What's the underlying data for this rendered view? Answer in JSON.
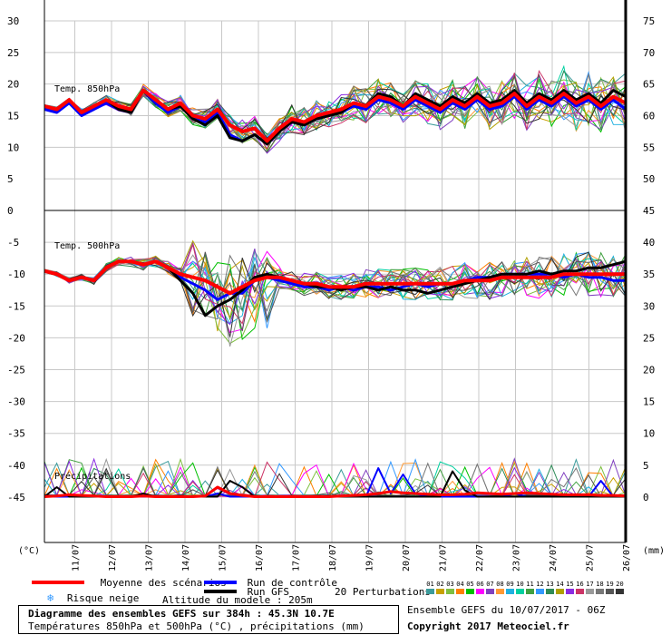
{
  "chart_data": {
    "type": "line",
    "panels": {
      "t850": {
        "label": "Temp. 850hPa",
        "left_axis": [
          30,
          25,
          20,
          15,
          10,
          5,
          0
        ],
        "right_axis": [
          75,
          70,
          65,
          60,
          55,
          50,
          45
        ],
        "ylim": [
          0,
          30
        ]
      },
      "t500": {
        "label": "Temp. 500hPa",
        "left_axis": [
          -5,
          -10,
          -15,
          -20,
          -25,
          -30,
          -35,
          -40,
          -45
        ],
        "right_axis": [
          40,
          35,
          30,
          25,
          20,
          15,
          10,
          5,
          0
        ],
        "ylim": [
          -50,
          0
        ]
      },
      "precip": {
        "label": "Précipitations"
      }
    },
    "unit_left": "(°C)",
    "unit_right": "(mm)",
    "dates": [
      "11/07",
      "12/07",
      "13/07",
      "14/07",
      "15/07",
      "16/07",
      "17/07",
      "18/07",
      "19/07",
      "20/07",
      "21/07",
      "22/07",
      "23/07",
      "24/07",
      "25/07",
      "26/07"
    ],
    "series": {
      "t850_mean": [
        16.5,
        16.0,
        17.5,
        15.5,
        16.5,
        17.5,
        16.5,
        16.0,
        19.0,
        17.5,
        16.0,
        17.0,
        15.0,
        14.5,
        16.0,
        13.5,
        12.5,
        13.0,
        11.0,
        13.0,
        14.5,
        14.0,
        15.0,
        15.5,
        16.0,
        17.0,
        16.5,
        18.0,
        17.5,
        16.5,
        18.0,
        17.0,
        16.0,
        17.5,
        16.5,
        18.0,
        16.5,
        17.0,
        18.5,
        16.5,
        18.0,
        17.0,
        18.5,
        17.0,
        18.0,
        16.5,
        18.0,
        17.0
      ],
      "t850_control": [
        16.0,
        15.5,
        17.0,
        15.0,
        16.0,
        17.0,
        16.0,
        15.5,
        19.0,
        17.0,
        15.5,
        16.5,
        14.5,
        14.0,
        15.5,
        12.0,
        11.0,
        12.0,
        10.5,
        12.5,
        14.0,
        13.5,
        14.5,
        15.0,
        15.5,
        16.5,
        16.0,
        17.5,
        17.0,
        16.0,
        17.5,
        16.5,
        15.5,
        17.0,
        16.0,
        17.5,
        16.0,
        16.5,
        18.0,
        16.0,
        17.5,
        16.5,
        18.0,
        16.5,
        17.5,
        16.0,
        17.5,
        16.0
      ],
      "t850_gfs": [
        16.5,
        16.0,
        17.5,
        15.5,
        16.5,
        17.5,
        16.0,
        15.5,
        19.0,
        17.5,
        16.0,
        16.5,
        14.5,
        13.5,
        15.0,
        11.5,
        11.0,
        12.0,
        10.5,
        12.5,
        14.0,
        13.5,
        14.5,
        15.0,
        15.5,
        17.0,
        16.5,
        18.5,
        18.0,
        16.5,
        18.5,
        17.5,
        16.5,
        18.0,
        17.0,
        18.5,
        17.0,
        17.5,
        19.0,
        17.0,
        18.5,
        17.5,
        19.0,
        17.5,
        18.5,
        17.0,
        19.0,
        18.0
      ],
      "t500_mean": [
        -9.5,
        -10.0,
        -11.0,
        -10.5,
        -11.0,
        -9.0,
        -8.0,
        -8.0,
        -8.5,
        -8.0,
        -9.0,
        -10.0,
        -10.5,
        -11.0,
        -12.0,
        -13.0,
        -12.0,
        -11.0,
        -10.5,
        -10.5,
        -11.0,
        -11.5,
        -11.5,
        -12.0,
        -12.0,
        -12.0,
        -11.5,
        -11.5,
        -11.5,
        -11.5,
        -11.5,
        -11.5,
        -11.5,
        -11.5,
        -11.0,
        -11.0,
        -11.0,
        -10.5,
        -10.5,
        -10.5,
        -10.5,
        -10.5,
        -10.0,
        -10.0,
        -10.0,
        -10.0,
        -10.0,
        -10.0
      ],
      "t500_control": [
        -9.5,
        -10.0,
        -11.0,
        -10.5,
        -11.0,
        -9.0,
        -8.0,
        -8.0,
        -8.5,
        -8.0,
        -9.0,
        -10.5,
        -11.5,
        -12.5,
        -14.0,
        -13.0,
        -13.0,
        -11.0,
        -10.5,
        -11.0,
        -11.5,
        -12.0,
        -12.0,
        -12.5,
        -12.0,
        -12.5,
        -12.0,
        -12.0,
        -12.5,
        -12.0,
        -11.5,
        -12.0,
        -11.5,
        -11.5,
        -11.0,
        -10.5,
        -10.5,
        -10.0,
        -10.0,
        -10.0,
        -10.0,
        -10.0,
        -10.5,
        -10.0,
        -10.5,
        -10.5,
        -11.0,
        -11.0
      ],
      "t500_gfs": [
        -9.5,
        -10.0,
        -11.0,
        -10.5,
        -11.0,
        -9.0,
        -8.0,
        -8.0,
        -8.5,
        -8.0,
        -9.0,
        -11.0,
        -13.0,
        -16.5,
        -15.0,
        -14.0,
        -12.5,
        -10.5,
        -10.0,
        -10.5,
        -11.0,
        -11.5,
        -12.0,
        -12.0,
        -12.5,
        -12.0,
        -12.0,
        -12.5,
        -12.0,
        -12.5,
        -12.5,
        -13.0,
        -12.5,
        -12.0,
        -11.5,
        -11.0,
        -10.5,
        -10.0,
        -10.0,
        -10.0,
        -9.5,
        -10.0,
        -9.5,
        -9.5,
        -9.0,
        -9.0,
        -8.5,
        -8.0
      ],
      "precip_mean": [
        0,
        0.1,
        0.3,
        0.2,
        0.1,
        0,
        0,
        0,
        0.1,
        0,
        0,
        0,
        0,
        0.1,
        1.5,
        0.5,
        0.2,
        0,
        0,
        0,
        0,
        0,
        0,
        0,
        0.1,
        0.2,
        0.3,
        0.5,
        0.8,
        0.6,
        0.5,
        0.4,
        0.3,
        0.3,
        0.4,
        0.6,
        0.5,
        0.4,
        0.5,
        0.6,
        0.5,
        0.4,
        0.3,
        0.3,
        0.3,
        0.2,
        0.2,
        0.1
      ],
      "precip_control": [
        0,
        0,
        0,
        0,
        0,
        0,
        0,
        0,
        0,
        0,
        0,
        0,
        0,
        0,
        0.5,
        0,
        0,
        0,
        0,
        0,
        0,
        0,
        0,
        0,
        0,
        0,
        0,
        4.5,
        0.5,
        3.5,
        0.5,
        0,
        0,
        0,
        0,
        0,
        0,
        0,
        0.5,
        0,
        0,
        0,
        0,
        0,
        0,
        2.5,
        0,
        0
      ],
      "precip_gfs": [
        0,
        1.5,
        0,
        0,
        0,
        0,
        0,
        0,
        0.5,
        0,
        0,
        0,
        0,
        0,
        0,
        2.5,
        1.5,
        0,
        0,
        0,
        0,
        0,
        0,
        0,
        0,
        0,
        0,
        0,
        0,
        0,
        0,
        0,
        0,
        4.0,
        1.0,
        0,
        0,
        0,
        0,
        0,
        0,
        0,
        0,
        0,
        0,
        0,
        0,
        0
      ]
    },
    "n_perturbations": 20
  },
  "colors": {
    "mean": "#ff0000",
    "control": "#0000ff",
    "gfs": "#000000",
    "snow": "#3399ff",
    "perturbations": [
      "#3b9b9b",
      "#c8a000",
      "#7ebf40",
      "#ff7f00",
      "#00c000",
      "#ff00ff",
      "#8040c0",
      "#ff9933",
      "#20b0e0",
      "#00d0a0",
      "#40a040",
      "#3399ff",
      "#2e8b57",
      "#b0a000",
      "#8a2be2",
      "#cc3366",
      "#999999",
      "#777777",
      "#555555",
      "#333333"
    ]
  },
  "legend": {
    "mean_label": "Moyenne des scénarios",
    "control_label": "Run de contrôle",
    "gfs_label": "Run GFS",
    "snow_label": "Risque neige",
    "altitude_label": "Altitude du modele : 205m",
    "perturbations_label": "20 Perturbations",
    "perturbation_codes": [
      "01",
      "02",
      "03",
      "04",
      "05",
      "06",
      "07",
      "08",
      "09",
      "10",
      "11",
      "12",
      "13",
      "14",
      "15",
      "16",
      "17",
      "18",
      "19",
      "20"
    ]
  },
  "footer": {
    "title": "Diagramme des ensembles GEFS sur 384h : 45.3N 10.7E",
    "subtitle": "Températures 850hPa et 500hPa (°C) , précipitations (mm)",
    "ensemble_run": "Ensemble GEFS du 10/07/2017 - 06Z",
    "copyright": "Copyright 2017 Meteociel.fr"
  }
}
